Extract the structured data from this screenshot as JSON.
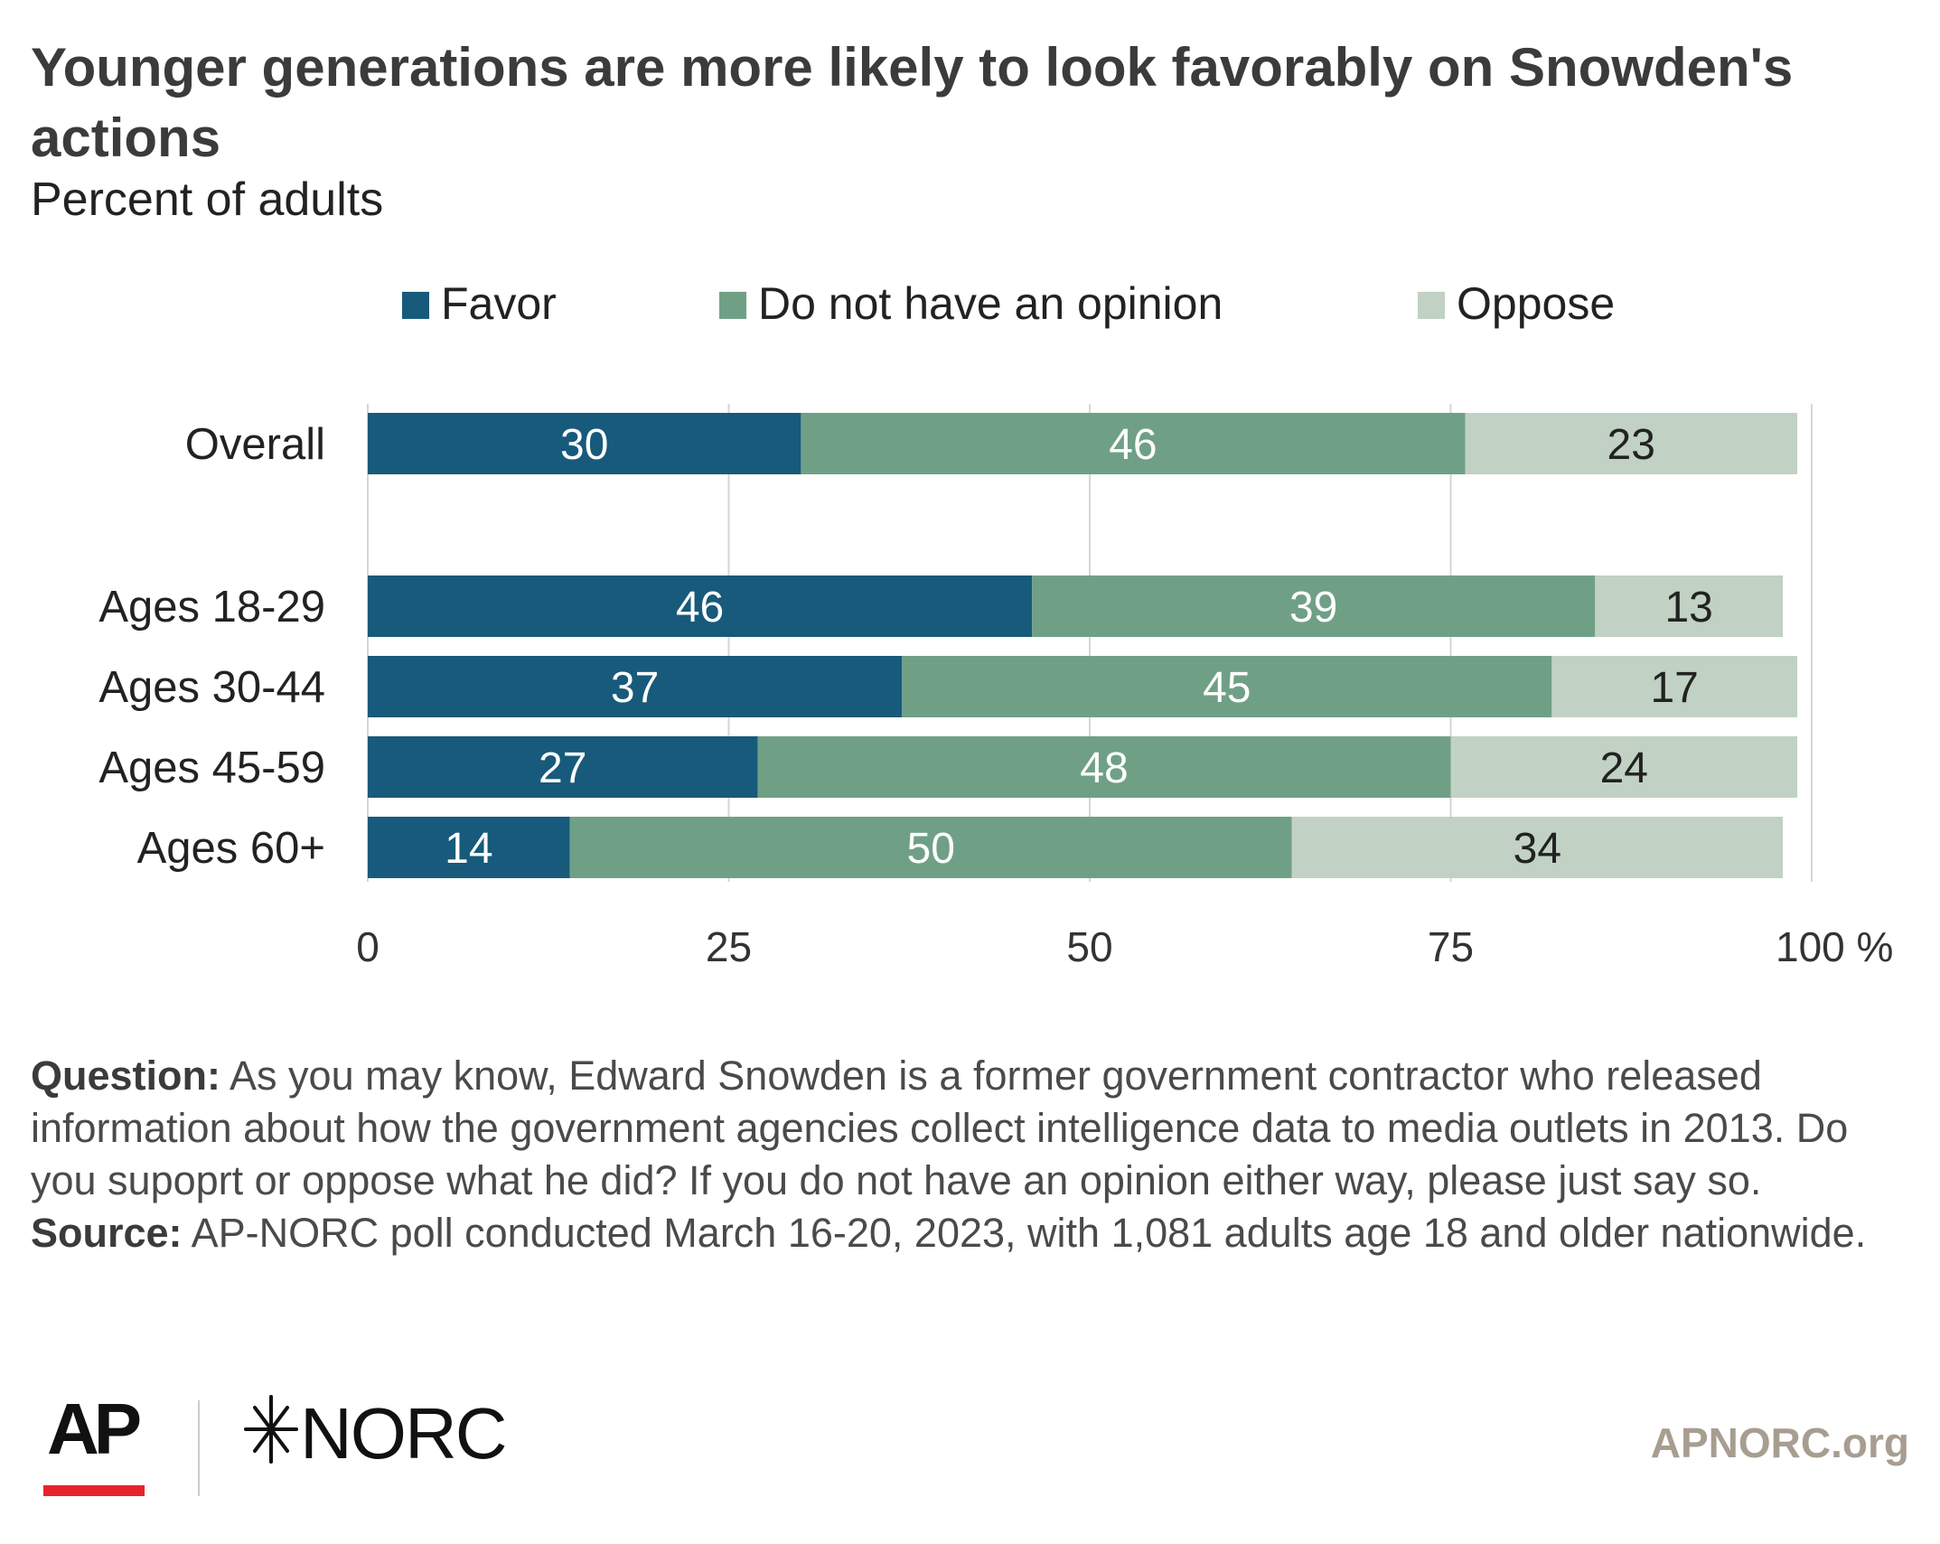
{
  "header": {
    "title": "Younger generations are more likely to look favorably on Snowden's actions",
    "subtitle": "Percent of adults"
  },
  "chart_data": {
    "type": "bar",
    "orientation": "horizontal",
    "stacked": true,
    "categories": [
      "Overall",
      "Ages 18-29",
      "Ages 30-44",
      "Ages 45-59",
      "Ages 60+"
    ],
    "series": [
      {
        "name": "Favor",
        "color": "#175a7b",
        "label_color": "#ffffff",
        "values": [
          30,
          46,
          37,
          27,
          14
        ]
      },
      {
        "name": "Do not have an opinion",
        "color": "#6fa086",
        "label_color": "#ffffff",
        "values": [
          46,
          39,
          45,
          48,
          50
        ]
      },
      {
        "name": "Oppose",
        "color": "#c1d1c3",
        "label_color": "#222222",
        "values": [
          23,
          13,
          17,
          24,
          34
        ]
      }
    ],
    "x_ticks": [
      "0",
      "25",
      "50",
      "75",
      "100 %"
    ],
    "xlim": [
      0,
      100
    ],
    "grid": true,
    "legend": "top"
  },
  "notes": {
    "question_label": "Question:",
    "question_text": "As you may know, Edward Snowden is a former government contractor who released information about how the government agencies collect intelligence data to media outlets in 2013. Do you supoprt or oppose what he did? If you do not have an opinion either way, please just say so.",
    "source_label": "Source:",
    "source_text": "AP-NORC poll conducted March 16-20, 2023, with 1,081 adults age 18 and older nationwide."
  },
  "footer": {
    "logo_ap": "AP",
    "logo_norc": "NORC",
    "site": "APNORC.org"
  }
}
